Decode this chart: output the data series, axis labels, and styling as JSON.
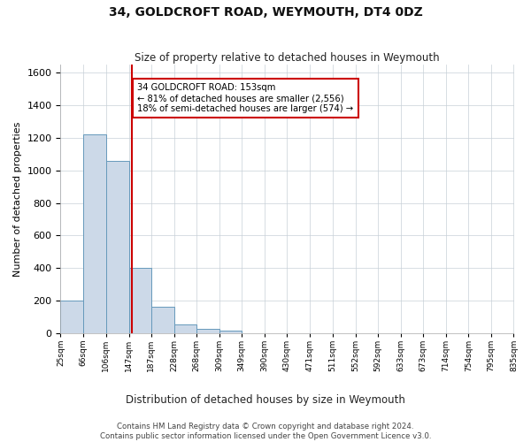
{
  "title": "34, GOLDCROFT ROAD, WEYMOUTH, DT4 0DZ",
  "subtitle": "Size of property relative to detached houses in Weymouth",
  "xlabel": "Distribution of detached houses by size in Weymouth",
  "ylabel": "Number of detached properties",
  "bin_edges": [
    25,
    66,
    106,
    147,
    187,
    228,
    268,
    309,
    349,
    390,
    430,
    471,
    511,
    552,
    592,
    633,
    673,
    714,
    754,
    795,
    835
  ],
  "bar_heights": [
    200,
    1220,
    1060,
    400,
    160,
    55,
    25,
    15,
    0,
    0,
    0,
    0,
    0,
    0,
    0,
    0,
    0,
    0,
    0,
    0
  ],
  "bar_color": "#ccd9e8",
  "bar_edge_color": "#6699bb",
  "property_size": 153,
  "property_line_color": "#cc0000",
  "annotation_line1": "34 GOLDCROFT ROAD: 153sqm",
  "annotation_line2": "← 81% of detached houses are smaller (2,556)",
  "annotation_line3": "18% of semi-detached houses are larger (574) →",
  "annotation_box_color": "#cc0000",
  "ylim": [
    0,
    1650
  ],
  "yticks": [
    0,
    200,
    400,
    600,
    800,
    1000,
    1200,
    1400,
    1600
  ],
  "footer_line1": "Contains HM Land Registry data © Crown copyright and database right 2024.",
  "footer_line2": "Contains public sector information licensed under the Open Government Licence v3.0.",
  "background_color": "#ffffff",
  "grid_color": "#c8d0d8"
}
